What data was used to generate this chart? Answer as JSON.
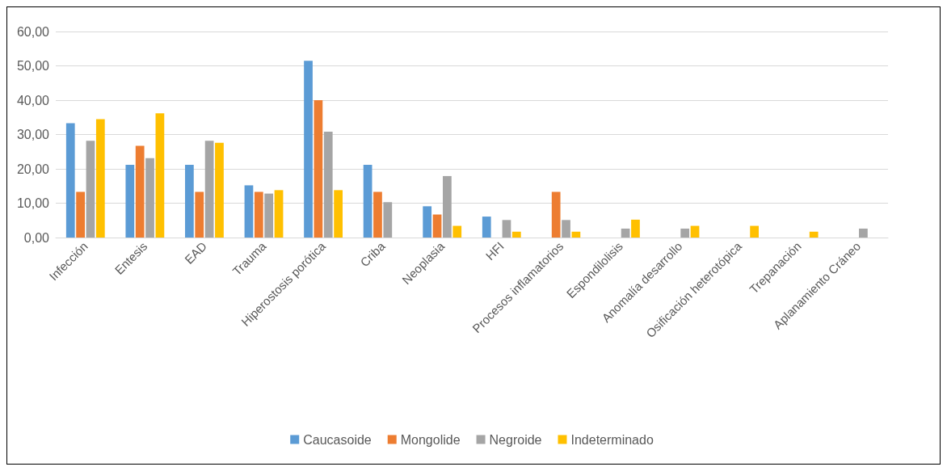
{
  "chart_data": {
    "type": "bar",
    "categories": [
      "Infección",
      "Entesis",
      "EAD",
      "Trauma",
      "Hiperostosis porótica",
      "Criba",
      "Neoplasia",
      "HFI",
      "Procesos inflamatorios",
      "Espondilolisis",
      "Anomalía desarrollo",
      "Osificación heterotópica",
      "Trepanación",
      "Aplanamiento Cráneo"
    ],
    "series": [
      {
        "name": "Caucasoide",
        "color": "#5b9bd5",
        "values": [
          33.3,
          21.2,
          21.2,
          15.2,
          51.5,
          21.2,
          9.1,
          6.1,
          null,
          null,
          null,
          null,
          null,
          null
        ]
      },
      {
        "name": "Mongolide",
        "color": "#ed7d31",
        "values": [
          13.3,
          26.7,
          13.3,
          13.3,
          40.0,
          13.3,
          6.7,
          null,
          13.3,
          null,
          null,
          null,
          null,
          null
        ]
      },
      {
        "name": "Negroide",
        "color": "#a5a5a5",
        "values": [
          28.2,
          23.1,
          28.2,
          12.8,
          30.8,
          10.3,
          17.9,
          5.1,
          5.1,
          2.6,
          2.6,
          null,
          null,
          2.6
        ]
      },
      {
        "name": "Indeterminado",
        "color": "#ffc000",
        "values": [
          34.5,
          36.2,
          27.6,
          13.8,
          13.8,
          null,
          3.4,
          1.7,
          1.7,
          5.2,
          3.4,
          3.4,
          1.7,
          null
        ]
      }
    ],
    "ylim": [
      0,
      60
    ],
    "yticks": [
      {
        "value": 0,
        "label": "0,00"
      },
      {
        "value": 10,
        "label": "10,00"
      },
      {
        "value": 20,
        "label": "20,00"
      },
      {
        "value": 30,
        "label": "30,00"
      },
      {
        "value": 40,
        "label": "40,00"
      },
      {
        "value": 50,
        "label": "50,00"
      },
      {
        "value": 60,
        "label": "60,00"
      }
    ],
    "grid": "y",
    "legend": "bottom"
  }
}
